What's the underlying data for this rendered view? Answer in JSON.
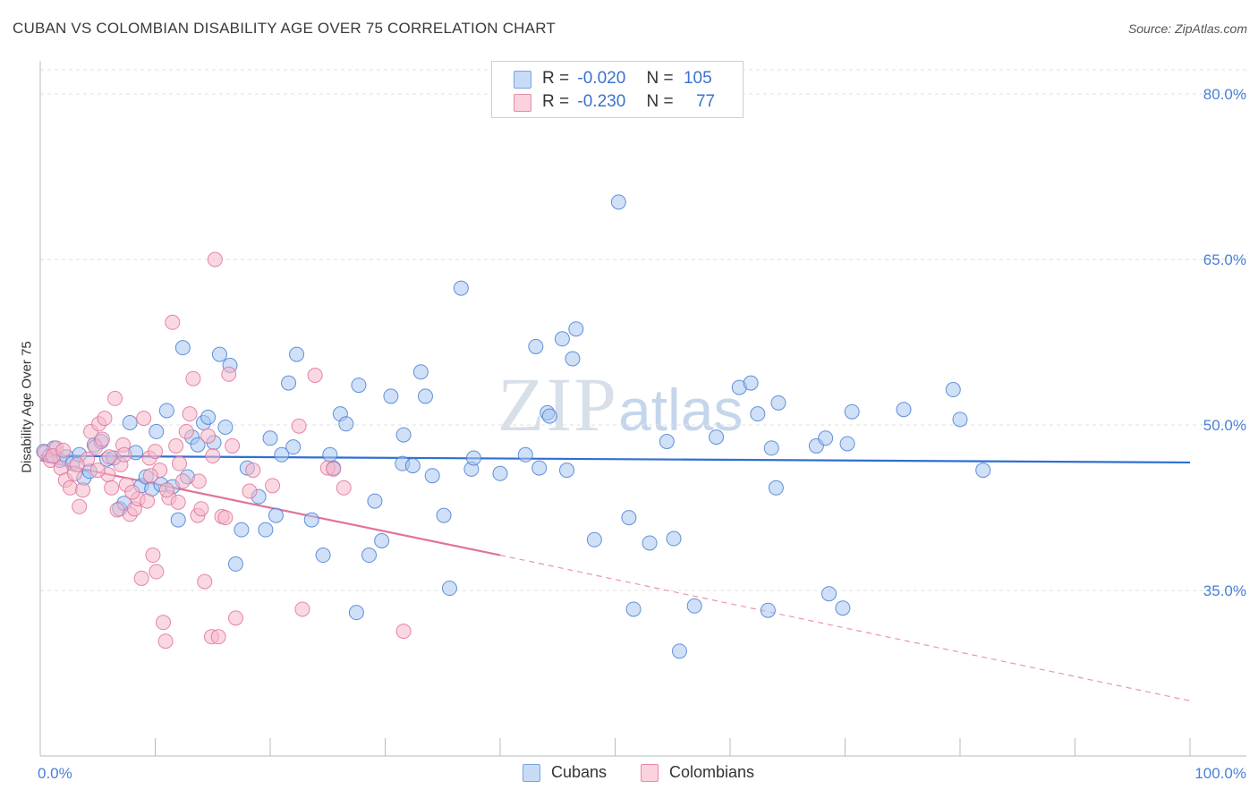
{
  "title": "CUBAN VS COLOMBIAN DISABILITY AGE OVER 75 CORRELATION CHART",
  "source": "Source: ZipAtlas.com",
  "watermark": {
    "zip": "ZIP",
    "atlas": "atlas"
  },
  "legend": {
    "rows": [
      {
        "r_label": "R =",
        "r_value": "-0.020",
        "n_label": "N =",
        "n_value": "105",
        "color": "#a8c6f0"
      },
      {
        "r_label": "R =",
        "r_value": "-0.230",
        "n_label": "N =",
        "n_value": "77",
        "color": "#f5b8cb"
      }
    ]
  },
  "bottom_legend": [
    {
      "label": "Cubans",
      "color": "#a8c6f0"
    },
    {
      "label": "Colombians",
      "color": "#f5b8cb"
    }
  ],
  "chart_data": {
    "type": "scatter",
    "title": "CUBAN VS COLOMBIAN DISABILITY AGE OVER 75 CORRELATION CHART",
    "ylabel": "Disability Age Over 75",
    "xlabel": "",
    "xlim": [
      0,
      100
    ],
    "ylim": [
      20,
      83
    ],
    "x_tick_labels": [
      "0.0%",
      "100.0%"
    ],
    "y_ticks": [
      35,
      50,
      65,
      80
    ],
    "y_tick_labels": [
      "35.0%",
      "50.0%",
      "65.0%",
      "80.0%"
    ],
    "grid": "dashed horizontal",
    "legend_position": "top-center",
    "series": [
      {
        "name": "Cubans",
        "color": "#4a7fd4",
        "fill": "#a8c6f0",
        "trend": {
          "x": [
            0,
            100
          ],
          "y": [
            47.2,
            46.6
          ],
          "style": "solid"
        },
        "points": [
          [
            0.3,
            47.6
          ],
          [
            0.8,
            47.2
          ],
          [
            1.2,
            47.9
          ],
          [
            1.7,
            46.8
          ],
          [
            2.3,
            47.1
          ],
          [
            2.8,
            46.5
          ],
          [
            3.4,
            47.3
          ],
          [
            3.8,
            45.2
          ],
          [
            4.3,
            45.8
          ],
          [
            4.7,
            48.2
          ],
          [
            5.3,
            48.5
          ],
          [
            5.8,
            46.9
          ],
          [
            6.4,
            47.0
          ],
          [
            6.9,
            42.4
          ],
          [
            7.3,
            42.9
          ],
          [
            7.8,
            50.2
          ],
          [
            8.3,
            47.5
          ],
          [
            8.8,
            44.5
          ],
          [
            9.2,
            45.3
          ],
          [
            9.7,
            44.2
          ],
          [
            10.1,
            49.4
          ],
          [
            10.5,
            44.6
          ],
          [
            11.0,
            51.3
          ],
          [
            11.5,
            44.4
          ],
          [
            12.0,
            41.4
          ],
          [
            12.4,
            57.0
          ],
          [
            12.8,
            45.3
          ],
          [
            13.2,
            48.9
          ],
          [
            13.7,
            48.2
          ],
          [
            14.2,
            50.2
          ],
          [
            14.6,
            50.7
          ],
          [
            15.1,
            48.4
          ],
          [
            15.6,
            56.4
          ],
          [
            16.1,
            49.8
          ],
          [
            16.5,
            55.4
          ],
          [
            17.0,
            37.4
          ],
          [
            17.5,
            40.5
          ],
          [
            18.0,
            46.1
          ],
          [
            19.0,
            43.5
          ],
          [
            19.6,
            40.5
          ],
          [
            20.0,
            48.8
          ],
          [
            20.5,
            41.8
          ],
          [
            21.0,
            47.3
          ],
          [
            21.6,
            53.8
          ],
          [
            22.0,
            48.0
          ],
          [
            22.3,
            56.4
          ],
          [
            23.6,
            41.4
          ],
          [
            24.6,
            38.2
          ],
          [
            25.2,
            47.3
          ],
          [
            25.5,
            46.1
          ],
          [
            26.1,
            51.0
          ],
          [
            26.6,
            50.1
          ],
          [
            27.5,
            33.0
          ],
          [
            27.7,
            53.6
          ],
          [
            28.6,
            38.2
          ],
          [
            29.1,
            43.1
          ],
          [
            29.7,
            39.5
          ],
          [
            30.5,
            52.6
          ],
          [
            31.6,
            49.1
          ],
          [
            31.5,
            46.5
          ],
          [
            32.4,
            46.3
          ],
          [
            33.1,
            54.8
          ],
          [
            33.5,
            52.6
          ],
          [
            34.1,
            45.4
          ],
          [
            35.1,
            41.8
          ],
          [
            35.6,
            35.2
          ],
          [
            36.6,
            62.4
          ],
          [
            37.5,
            46.0
          ],
          [
            37.7,
            47.0
          ],
          [
            40.0,
            45.6
          ],
          [
            42.2,
            47.3
          ],
          [
            43.1,
            57.1
          ],
          [
            43.4,
            46.1
          ],
          [
            44.1,
            51.1
          ],
          [
            44.3,
            50.8
          ],
          [
            45.4,
            57.8
          ],
          [
            45.8,
            45.9
          ],
          [
            46.3,
            56.0
          ],
          [
            46.6,
            58.7
          ],
          [
            48.2,
            39.6
          ],
          [
            50.3,
            70.2
          ],
          [
            51.2,
            41.6
          ],
          [
            51.6,
            33.3
          ],
          [
            53.0,
            39.3
          ],
          [
            54.5,
            48.5
          ],
          [
            55.1,
            39.7
          ],
          [
            55.6,
            29.5
          ],
          [
            56.9,
            33.6
          ],
          [
            58.8,
            48.9
          ],
          [
            60.8,
            53.4
          ],
          [
            61.8,
            53.8
          ],
          [
            62.4,
            51.0
          ],
          [
            63.3,
            33.2
          ],
          [
            63.6,
            47.9
          ],
          [
            64.0,
            44.3
          ],
          [
            64.2,
            52.0
          ],
          [
            67.5,
            48.1
          ],
          [
            68.3,
            48.8
          ],
          [
            68.6,
            34.7
          ],
          [
            69.8,
            33.4
          ],
          [
            70.2,
            48.3
          ],
          [
            70.6,
            51.2
          ],
          [
            75.1,
            51.4
          ],
          [
            79.4,
            53.2
          ],
          [
            80.0,
            50.5
          ],
          [
            82.0,
            45.9
          ]
        ]
      },
      {
        "name": "Colombians",
        "color": "#e0739a",
        "fill": "#f5b8cb",
        "trend": {
          "x": [
            0,
            40,
            100
          ],
          "y": [
            46.8,
            38.2,
            25.0
          ],
          "style": "solid-then-dashed"
        },
        "points": [
          [
            0.4,
            47.5
          ],
          [
            0.9,
            46.8
          ],
          [
            1.4,
            47.9
          ],
          [
            1.8,
            46.1
          ],
          [
            2.2,
            45.0
          ],
          [
            2.6,
            44.3
          ],
          [
            3.0,
            45.6
          ],
          [
            3.4,
            42.6
          ],
          [
            3.7,
            44.1
          ],
          [
            4.1,
            46.9
          ],
          [
            4.4,
            49.4
          ],
          [
            4.8,
            48.0
          ],
          [
            5.1,
            50.1
          ],
          [
            5.4,
            48.7
          ],
          [
            5.6,
            50.6
          ],
          [
            5.9,
            45.5
          ],
          [
            6.2,
            44.3
          ],
          [
            6.5,
            52.4
          ],
          [
            6.7,
            42.3
          ],
          [
            7.0,
            46.4
          ],
          [
            7.2,
            48.2
          ],
          [
            7.5,
            44.6
          ],
          [
            7.8,
            41.9
          ],
          [
            8.2,
            42.4
          ],
          [
            8.5,
            43.3
          ],
          [
            8.8,
            36.1
          ],
          [
            9.0,
            50.6
          ],
          [
            9.3,
            43.1
          ],
          [
            9.5,
            47.0
          ],
          [
            9.8,
            38.2
          ],
          [
            10.1,
            36.7
          ],
          [
            10.4,
            45.9
          ],
          [
            10.7,
            32.1
          ],
          [
            10.9,
            30.4
          ],
          [
            11.2,
            43.4
          ],
          [
            11.5,
            59.3
          ],
          [
            11.8,
            48.1
          ],
          [
            12.1,
            46.5
          ],
          [
            12.4,
            44.9
          ],
          [
            12.7,
            49.4
          ],
          [
            13.0,
            51.0
          ],
          [
            13.3,
            54.2
          ],
          [
            13.7,
            41.8
          ],
          [
            14.0,
            42.4
          ],
          [
            14.3,
            35.8
          ],
          [
            14.6,
            49.0
          ],
          [
            14.9,
            30.8
          ],
          [
            15.2,
            65.0
          ],
          [
            15.5,
            30.8
          ],
          [
            15.8,
            41.7
          ],
          [
            16.1,
            41.6
          ],
          [
            16.4,
            54.6
          ],
          [
            17.0,
            32.5
          ],
          [
            18.5,
            45.9
          ],
          [
            20.2,
            44.5
          ],
          [
            22.5,
            49.9
          ],
          [
            22.8,
            33.3
          ],
          [
            23.9,
            54.5
          ],
          [
            25.0,
            46.1
          ],
          [
            25.5,
            46.0
          ],
          [
            26.4,
            44.3
          ],
          [
            31.6,
            31.3
          ],
          [
            3.2,
            46.4
          ],
          [
            1.1,
            47.2
          ],
          [
            2.0,
            47.7
          ],
          [
            5.0,
            45.9
          ],
          [
            6.0,
            47.1
          ],
          [
            7.3,
            47.3
          ],
          [
            8.0,
            43.9
          ],
          [
            9.6,
            45.4
          ],
          [
            10.0,
            47.6
          ],
          [
            11.0,
            44.1
          ],
          [
            12.0,
            43.0
          ],
          [
            13.8,
            44.9
          ],
          [
            15.0,
            47.2
          ],
          [
            16.7,
            48.1
          ],
          [
            18.2,
            44.0
          ]
        ]
      }
    ]
  }
}
